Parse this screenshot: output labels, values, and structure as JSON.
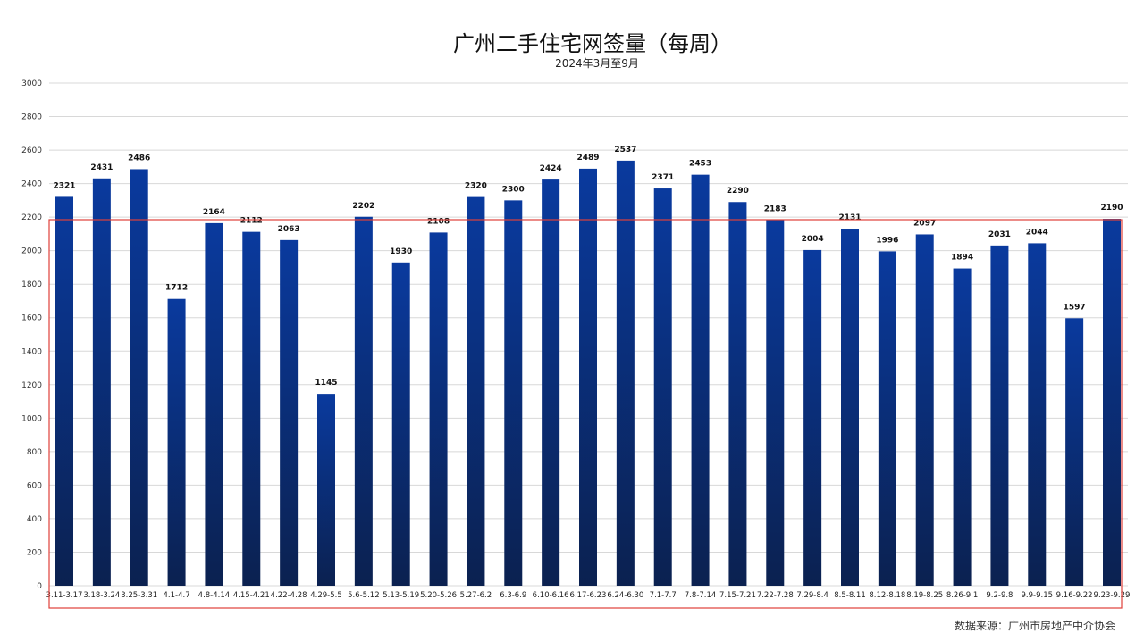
{
  "chart_data": {
    "type": "bar",
    "title": "广州二手住宅网签量（每周）",
    "subtitle": "2024年3月至9月",
    "xlabel": "",
    "ylabel": "",
    "ylim": [
      0,
      3000
    ],
    "yticks": [
      0,
      200,
      400,
      600,
      800,
      1000,
      1200,
      1400,
      1600,
      1800,
      2000,
      2200,
      2400,
      2600,
      2800,
      3000
    ],
    "grid": true,
    "categories": [
      "3.11-3.17",
      "3.18-3.24",
      "3.25-3.31",
      "4.1-4.7",
      "4.8-4.14",
      "4.15-4.21",
      "4.22-4.28",
      "4.29-5.5",
      "5.6-5.12",
      "5.13-5.19",
      "5.20-5.26",
      "5.27-6.2",
      "6.3-6.9",
      "6.10-6.16",
      "6.17-6.23",
      "6.24-6.30",
      "7.1-7.7",
      "7.8-7.14",
      "7.15-7.21",
      "7.22-7.28",
      "7.29-8.4",
      "8.5-8.11",
      "8.12-8.18",
      "8.19-8.25",
      "8.26-9.1",
      "9.2-9.8",
      "9.9-9.15",
      "9.16-9.22",
      "9.23-9.29"
    ],
    "values": [
      2321,
      2431,
      2486,
      1712,
      2164,
      2112,
      2063,
      1145,
      2202,
      1930,
      2108,
      2320,
      2300,
      2424,
      2489,
      2537,
      2371,
      2453,
      2290,
      2183,
      2004,
      2131,
      1996,
      2097,
      1894,
      2031,
      2044,
      1597,
      2190
    ],
    "source": "数据来源：广州市房地产中介协会",
    "colors": {
      "bar_top": "#0a3a9e",
      "bar_bottom": "#0b2150",
      "highlight_box": "#e0403a",
      "grid": "#d8d8d8"
    }
  }
}
